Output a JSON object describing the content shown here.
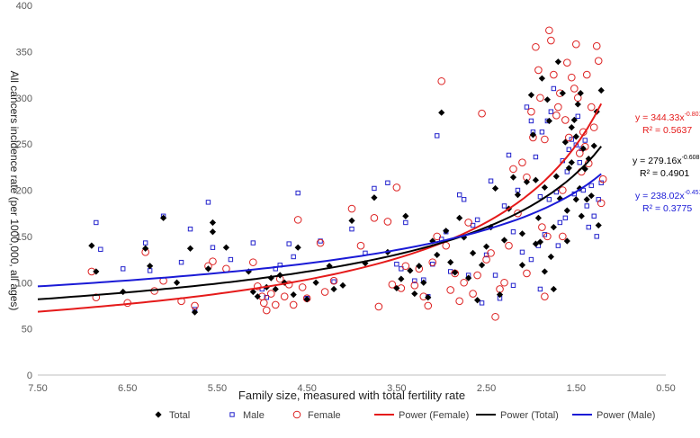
{
  "chart_data": {
    "type": "scatter",
    "xlabel": "Family size,  measured with total fertility rate",
    "ylabel": "All cancers incidence rate (per 1000,000, all ages)",
    "x_reversed": true,
    "xlim": [
      0.5,
      7.5
    ],
    "ylim": [
      0,
      400
    ],
    "x_ticks": [
      "7.50",
      "6.50",
      "5.50",
      "4.50",
      "3.50",
      "2.50",
      "1.50",
      "0.50"
    ],
    "x_tick_values": [
      7.5,
      6.5,
      5.5,
      4.5,
      3.5,
      2.5,
      1.5,
      0.5
    ],
    "y_ticks": [
      "0",
      "50",
      "100",
      "150",
      "200",
      "250",
      "300",
      "350",
      "400"
    ],
    "y_tick_values": [
      0,
      50,
      100,
      150,
      200,
      250,
      300,
      350,
      400
    ],
    "grid": false,
    "legend_position": "bottom",
    "series": [
      {
        "name": "Total",
        "marker": "diamond",
        "color": "#000000",
        "points": [
          [
            6.9,
            140
          ],
          [
            6.85,
            112
          ],
          [
            6.55,
            90
          ],
          [
            6.3,
            137
          ],
          [
            6.25,
            118
          ],
          [
            6.1,
            170
          ],
          [
            5.95,
            100
          ],
          [
            5.8,
            137
          ],
          [
            5.75,
            68
          ],
          [
            5.6,
            115
          ],
          [
            5.55,
            165
          ],
          [
            5.55,
            155
          ],
          [
            5.4,
            138
          ],
          [
            5.15,
            112
          ],
          [
            5.1,
            90
          ],
          [
            5.05,
            85
          ],
          [
            4.95,
            95
          ],
          [
            4.9,
            105
          ],
          [
            4.85,
            93
          ],
          [
            4.8,
            108
          ],
          [
            4.75,
            100
          ],
          [
            4.65,
            87
          ],
          [
            4.6,
            138
          ],
          [
            4.5,
            82
          ],
          [
            4.4,
            100
          ],
          [
            4.25,
            118
          ],
          [
            4.2,
            93
          ],
          [
            4.1,
            97
          ],
          [
            4.0,
            167
          ],
          [
            3.85,
            121
          ],
          [
            3.75,
            192
          ],
          [
            3.6,
            133
          ],
          [
            3.5,
            94
          ],
          [
            3.45,
            104
          ],
          [
            3.4,
            172
          ],
          [
            3.35,
            113
          ],
          [
            3.3,
            88
          ],
          [
            3.25,
            118
          ],
          [
            3.2,
            100
          ],
          [
            3.15,
            84
          ],
          [
            3.1,
            145
          ],
          [
            3.05,
            130
          ],
          [
            3.0,
            284
          ],
          [
            2.95,
            156
          ],
          [
            2.9,
            122
          ],
          [
            2.85,
            111
          ],
          [
            2.8,
            170
          ],
          [
            2.75,
            149
          ],
          [
            2.7,
            105
          ],
          [
            2.65,
            132
          ],
          [
            2.6,
            81
          ],
          [
            2.55,
            119
          ],
          [
            2.5,
            139
          ],
          [
            2.45,
            160
          ],
          [
            2.4,
            202
          ],
          [
            2.35,
            87
          ],
          [
            2.3,
            146
          ],
          [
            2.25,
            180
          ],
          [
            2.2,
            214
          ],
          [
            2.15,
            195
          ],
          [
            2.1,
            153
          ],
          [
            2.05,
            209
          ],
          [
            2.0,
            303
          ],
          [
            1.98,
            260
          ],
          [
            1.95,
            211
          ],
          [
            1.92,
            170
          ],
          [
            1.9,
            144
          ],
          [
            1.88,
            321
          ],
          [
            1.85,
            203
          ],
          [
            1.82,
            298
          ],
          [
            1.8,
            275
          ],
          [
            1.78,
            128
          ],
          [
            1.75,
            160
          ],
          [
            1.72,
            215
          ],
          [
            1.7,
            339
          ],
          [
            1.68,
            191
          ],
          [
            1.65,
            305
          ],
          [
            1.62,
            252
          ],
          [
            1.6,
            178
          ],
          [
            1.58,
            224
          ],
          [
            1.55,
            230
          ],
          [
            1.52,
            276
          ],
          [
            1.5,
            258
          ],
          [
            1.48,
            293
          ],
          [
            1.46,
            202
          ],
          [
            1.44,
            172
          ],
          [
            1.42,
            245
          ],
          [
            1.4,
            223
          ],
          [
            1.38,
            190
          ],
          [
            1.36,
            234
          ],
          [
            1.33,
            194
          ],
          [
            1.3,
            248
          ],
          [
            1.27,
            285
          ],
          [
            1.25,
            162
          ],
          [
            1.22,
            308
          ],
          [
            1.95,
            142
          ],
          [
            1.85,
            112
          ],
          [
            1.75,
            93
          ],
          [
            2.1,
            119
          ],
          [
            1.6,
            145
          ],
          [
            1.5,
            190
          ],
          [
            1.45,
            305
          ],
          [
            1.55,
            268
          ]
        ]
      },
      {
        "name": "Male",
        "marker": "square-open",
        "color": "#2222cc",
        "points": [
          [
            6.85,
            165
          ],
          [
            6.8,
            136
          ],
          [
            6.55,
            115
          ],
          [
            6.3,
            143
          ],
          [
            6.25,
            113
          ],
          [
            6.1,
            172
          ],
          [
            5.9,
            122
          ],
          [
            5.8,
            158
          ],
          [
            5.75,
            71
          ],
          [
            5.6,
            187
          ],
          [
            5.55,
            138
          ],
          [
            5.35,
            125
          ],
          [
            5.1,
            143
          ],
          [
            5.0,
            93
          ],
          [
            4.95,
            84
          ],
          [
            4.85,
            115
          ],
          [
            4.8,
            119
          ],
          [
            4.7,
            142
          ],
          [
            4.65,
            128
          ],
          [
            4.6,
            197
          ],
          [
            4.5,
            83
          ],
          [
            4.35,
            145
          ],
          [
            4.2,
            101
          ],
          [
            4.0,
            158
          ],
          [
            3.85,
            132
          ],
          [
            3.75,
            202
          ],
          [
            3.6,
            208
          ],
          [
            3.5,
            120
          ],
          [
            3.45,
            115
          ],
          [
            3.4,
            165
          ],
          [
            3.3,
            102
          ],
          [
            3.2,
            103
          ],
          [
            3.15,
            85
          ],
          [
            3.1,
            120
          ],
          [
            3.05,
            259
          ],
          [
            3.0,
            147
          ],
          [
            2.95,
            155
          ],
          [
            2.9,
            112
          ],
          [
            2.8,
            195
          ],
          [
            2.75,
            190
          ],
          [
            2.7,
            108
          ],
          [
            2.65,
            162
          ],
          [
            2.6,
            168
          ],
          [
            2.55,
            78
          ],
          [
            2.5,
            130
          ],
          [
            2.45,
            210
          ],
          [
            2.4,
            108
          ],
          [
            2.35,
            83
          ],
          [
            2.3,
            183
          ],
          [
            2.25,
            238
          ],
          [
            2.2,
            155
          ],
          [
            2.15,
            200
          ],
          [
            2.1,
            133
          ],
          [
            2.05,
            290
          ],
          [
            2.0,
            275
          ],
          [
            1.98,
            263
          ],
          [
            1.95,
            236
          ],
          [
            1.92,
            140
          ],
          [
            1.9,
            193
          ],
          [
            1.88,
            263
          ],
          [
            1.85,
            152
          ],
          [
            1.82,
            275
          ],
          [
            1.8,
            190
          ],
          [
            1.78,
            285
          ],
          [
            1.75,
            310
          ],
          [
            1.72,
            198
          ],
          [
            1.7,
            140
          ],
          [
            1.68,
            165
          ],
          [
            1.65,
            232
          ],
          [
            1.62,
            170
          ],
          [
            1.6,
            220
          ],
          [
            1.58,
            244
          ],
          [
            1.55,
            255
          ],
          [
            1.52,
            196
          ],
          [
            1.5,
            249
          ],
          [
            1.48,
            280
          ],
          [
            1.46,
            230
          ],
          [
            1.44,
            245
          ],
          [
            1.42,
            200
          ],
          [
            1.4,
            254
          ],
          [
            1.38,
            183
          ],
          [
            1.36,
            160
          ],
          [
            1.33,
            205
          ],
          [
            1.3,
            172
          ],
          [
            1.27,
            150
          ],
          [
            1.25,
            190
          ],
          [
            1.22,
            208
          ],
          [
            2.2,
            97
          ],
          [
            2.0,
            125
          ],
          [
            1.9,
            93
          ]
        ]
      },
      {
        "name": "Female",
        "marker": "circle-open",
        "color": "#dd2222",
        "points": [
          [
            6.9,
            112
          ],
          [
            6.85,
            84
          ],
          [
            6.5,
            78
          ],
          [
            6.3,
            133
          ],
          [
            6.2,
            91
          ],
          [
            6.1,
            102
          ],
          [
            5.9,
            80
          ],
          [
            5.75,
            75
          ],
          [
            5.6,
            118
          ],
          [
            5.55,
            123
          ],
          [
            5.4,
            115
          ],
          [
            5.1,
            122
          ],
          [
            5.05,
            96
          ],
          [
            5.0,
            85
          ],
          [
            4.98,
            78
          ],
          [
            4.95,
            70
          ],
          [
            4.9,
            88
          ],
          [
            4.85,
            76
          ],
          [
            4.8,
            104
          ],
          [
            4.75,
            85
          ],
          [
            4.7,
            98
          ],
          [
            4.65,
            76
          ],
          [
            4.6,
            168
          ],
          [
            4.55,
            95
          ],
          [
            4.5,
            83
          ],
          [
            4.35,
            143
          ],
          [
            4.3,
            90
          ],
          [
            4.2,
            102
          ],
          [
            4.0,
            180
          ],
          [
            3.9,
            140
          ],
          [
            3.75,
            170
          ],
          [
            3.7,
            74
          ],
          [
            3.6,
            166
          ],
          [
            3.55,
            98
          ],
          [
            3.5,
            203
          ],
          [
            3.45,
            94
          ],
          [
            3.4,
            118
          ],
          [
            3.3,
            97
          ],
          [
            3.25,
            115
          ],
          [
            3.2,
            85
          ],
          [
            3.15,
            75
          ],
          [
            3.1,
            122
          ],
          [
            3.05,
            150
          ],
          [
            3.0,
            318
          ],
          [
            2.95,
            140
          ],
          [
            2.9,
            92
          ],
          [
            2.85,
            110
          ],
          [
            2.8,
            80
          ],
          [
            2.75,
            100
          ],
          [
            2.7,
            165
          ],
          [
            2.65,
            88
          ],
          [
            2.6,
            108
          ],
          [
            2.55,
            283
          ],
          [
            2.5,
            125
          ],
          [
            2.45,
            132
          ],
          [
            2.4,
            63
          ],
          [
            2.35,
            93
          ],
          [
            2.3,
            100
          ],
          [
            2.25,
            140
          ],
          [
            2.2,
            223
          ],
          [
            2.15,
            175
          ],
          [
            2.1,
            230
          ],
          [
            2.05,
            214
          ],
          [
            2.0,
            285
          ],
          [
            1.98,
            257
          ],
          [
            1.95,
            355
          ],
          [
            1.92,
            330
          ],
          [
            1.9,
            300
          ],
          [
            1.88,
            160
          ],
          [
            1.85,
            255
          ],
          [
            1.82,
            150
          ],
          [
            1.8,
            373
          ],
          [
            1.78,
            362
          ],
          [
            1.75,
            325
          ],
          [
            1.72,
            281
          ],
          [
            1.7,
            290
          ],
          [
            1.68,
            305
          ],
          [
            1.65,
            200
          ],
          [
            1.62,
            276
          ],
          [
            1.6,
            338
          ],
          [
            1.58,
            257
          ],
          [
            1.55,
            322
          ],
          [
            1.52,
            310
          ],
          [
            1.5,
            358
          ],
          [
            1.48,
            300
          ],
          [
            1.46,
            240
          ],
          [
            1.44,
            220
          ],
          [
            1.42,
            263
          ],
          [
            1.4,
            247
          ],
          [
            1.38,
            325
          ],
          [
            1.36,
            229
          ],
          [
            1.33,
            290
          ],
          [
            1.3,
            268
          ],
          [
            1.27,
            356
          ],
          [
            1.25,
            340
          ],
          [
            1.22,
            186
          ],
          [
            1.2,
            212
          ],
          [
            1.85,
            85
          ],
          [
            2.05,
            110
          ],
          [
            1.65,
            150
          ]
        ]
      }
    ],
    "trendlines": [
      {
        "name": "Power (Female)",
        "color": "#e51a1a",
        "a": 344.33,
        "b": -0.801,
        "equation": "y = 344.33x",
        "exponent": "-0.801",
        "r2": "R² = 0.5637"
      },
      {
        "name": "Power (Total)",
        "color": "#000000",
        "a": 279.16,
        "b": -0.608,
        "equation": "y = 279.16x",
        "exponent": "-0.608",
        "r2": "R² = 0.4901"
      },
      {
        "name": "Power (Male)",
        "color": "#1a1ad6",
        "a": 238.02,
        "b": -0.451,
        "equation": "y = 238.02x",
        "exponent": "-0.451",
        "r2": "R² = 0.3775"
      }
    ],
    "trend_x_range": [
      7.5,
      1.22
    ]
  }
}
